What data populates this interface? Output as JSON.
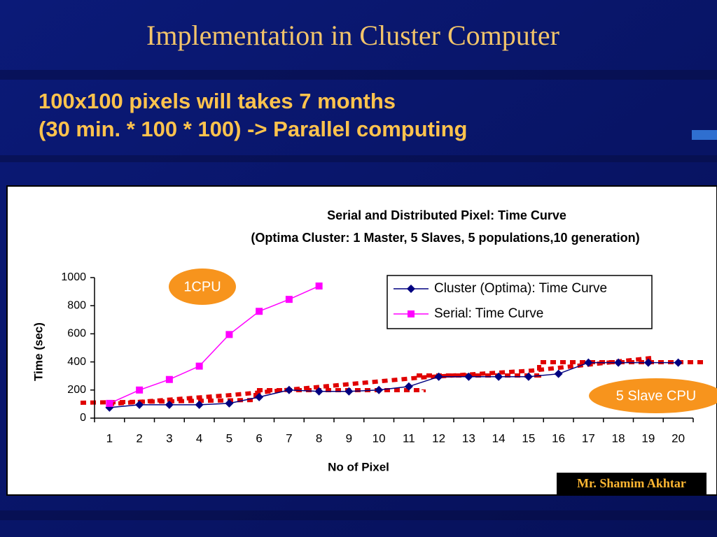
{
  "slide": {
    "title": "Implementation in Cluster Computer",
    "subtitle": [
      "100x100 pixels will takes 7 months",
      "(30 min. * 100 * 100) -> Parallel computing"
    ],
    "author": "Mr. Shamim Akhtar"
  },
  "chart_data": {
    "type": "line",
    "title": "Serial and Distributed Pixel: Time Curve",
    "subtitle": "(Optima Cluster: 1 Master, 5 Slaves, 5 populations,10 generation)",
    "x_label": "No of Pixel",
    "y_label": "Time (sec)",
    "categories": [
      "1",
      "2",
      "3",
      "4",
      "5",
      "6",
      "7",
      "8",
      "9",
      "10",
      "11",
      "12",
      "13",
      "14",
      "15",
      "16",
      "17",
      "18",
      "19",
      "20"
    ],
    "series": [
      {
        "name": "Cluster (Optima): Time Curve",
        "color": "#000080",
        "marker": "diamond",
        "values": [
          75,
          95,
          95,
          95,
          105,
          150,
          200,
          190,
          190,
          200,
          225,
          295,
          295,
          295,
          295,
          315,
          395,
          395,
          395,
          395
        ]
      },
      {
        "name": "Serial: Time Curve",
        "color": "#ff00ff",
        "marker": "square",
        "values": [
          105,
          200,
          275,
          370,
          595,
          760,
          845,
          940,
          null,
          null,
          null,
          null,
          null,
          null,
          null,
          null,
          null,
          null,
          null,
          null
        ]
      }
    ],
    "ylim": [
      0,
      1000
    ],
    "yticks": [
      0,
      200,
      400,
      600,
      800,
      1000
    ],
    "annotations": [
      "1CPU",
      "5 Slave CPU"
    ],
    "legend": "top-right"
  }
}
